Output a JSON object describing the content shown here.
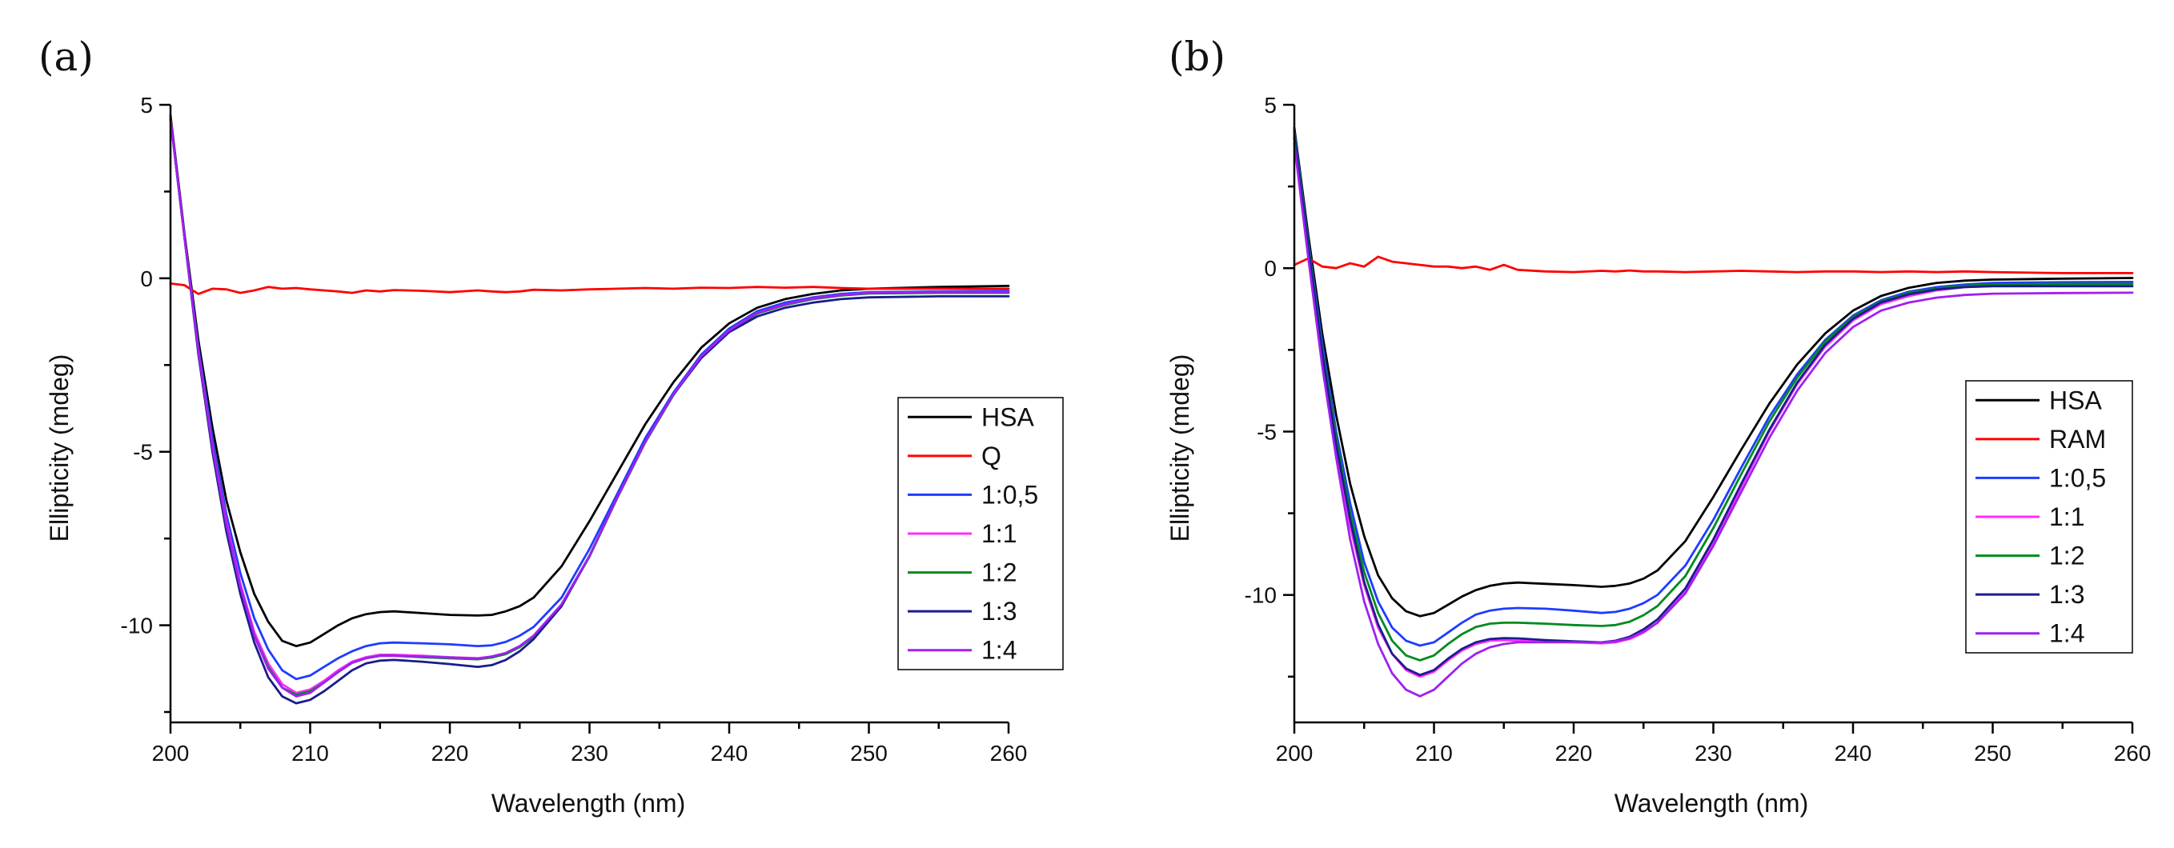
{
  "chart_data": [
    {
      "type": "line",
      "panel_label": "(a)",
      "xlabel": "Wavelength (nm)",
      "ylabel": "Ellipticity (mdeg)",
      "xlim": [
        200,
        260
      ],
      "ylim": [
        -12.8,
        5
      ],
      "xticks": [
        200,
        210,
        220,
        230,
        240,
        250,
        260
      ],
      "yticks": [
        5,
        0,
        -5,
        -10
      ],
      "xtick_labels": [
        "200",
        "210",
        "220",
        "230",
        "240",
        "250",
        "260"
      ],
      "ytick_labels": [
        "5",
        "0",
        "-5",
        "-10"
      ],
      "legend_position": "right",
      "x": [
        200,
        201,
        202,
        203,
        204,
        205,
        206,
        207,
        208,
        209,
        210,
        211,
        212,
        213,
        214,
        215,
        216,
        218,
        220,
        222,
        223,
        224,
        225,
        226,
        228,
        230,
        232,
        234,
        236,
        238,
        240,
        242,
        244,
        246,
        248,
        250,
        255,
        260
      ],
      "series": [
        {
          "name": "HSA",
          "color": "#000000",
          "values": [
            4.7,
            1.3,
            -1.8,
            -4.3,
            -6.4,
            -7.9,
            -9.1,
            -9.9,
            -10.45,
            -10.6,
            -10.5,
            -10.25,
            -10.0,
            -9.8,
            -9.68,
            -9.62,
            -9.6,
            -9.65,
            -9.7,
            -9.72,
            -9.7,
            -9.6,
            -9.45,
            -9.2,
            -8.3,
            -7.0,
            -5.6,
            -4.2,
            -3.0,
            -2.0,
            -1.3,
            -0.85,
            -0.6,
            -0.45,
            -0.35,
            -0.3,
            -0.25,
            -0.22
          ]
        },
        {
          "name": "Q",
          "color": "#ff0000",
          "values": [
            -0.15,
            -0.2,
            -0.45,
            -0.3,
            -0.32,
            -0.42,
            -0.35,
            -0.25,
            -0.3,
            -0.28,
            -0.32,
            -0.35,
            -0.38,
            -0.42,
            -0.35,
            -0.38,
            -0.34,
            -0.36,
            -0.4,
            -0.35,
            -0.38,
            -0.4,
            -0.38,
            -0.33,
            -0.35,
            -0.32,
            -0.3,
            -0.28,
            -0.3,
            -0.27,
            -0.28,
            -0.25,
            -0.27,
            -0.25,
            -0.28,
            -0.3,
            -0.3,
            -0.3
          ]
        },
        {
          "name": "1:0,5",
          "color": "#1e3cff",
          "values": [
            4.6,
            1.2,
            -2.0,
            -4.6,
            -6.8,
            -8.5,
            -9.8,
            -10.7,
            -11.3,
            -11.55,
            -11.45,
            -11.2,
            -10.95,
            -10.75,
            -10.6,
            -10.52,
            -10.5,
            -10.52,
            -10.55,
            -10.6,
            -10.58,
            -10.48,
            -10.3,
            -10.05,
            -9.2,
            -7.8,
            -6.2,
            -4.6,
            -3.3,
            -2.2,
            -1.45,
            -0.95,
            -0.7,
            -0.55,
            -0.45,
            -0.4,
            -0.38,
            -0.36
          ]
        },
        {
          "name": "1:1",
          "color": "#ff2cff",
          "values": [
            4.6,
            1.2,
            -2.1,
            -4.8,
            -7.0,
            -8.8,
            -10.2,
            -11.1,
            -11.7,
            -11.95,
            -11.85,
            -11.6,
            -11.3,
            -11.05,
            -10.92,
            -10.85,
            -10.85,
            -10.88,
            -10.92,
            -10.95,
            -10.9,
            -10.8,
            -10.6,
            -10.3,
            -9.4,
            -8.0,
            -6.3,
            -4.7,
            -3.35,
            -2.25,
            -1.5,
            -1.0,
            -0.75,
            -0.58,
            -0.48,
            -0.42,
            -0.4,
            -0.4
          ]
        },
        {
          "name": "1:2",
          "color": "#008a1e",
          "values": [
            4.6,
            1.2,
            -2.1,
            -4.8,
            -7.1,
            -8.9,
            -10.3,
            -11.2,
            -11.8,
            -12.0,
            -11.9,
            -11.65,
            -11.35,
            -11.08,
            -10.95,
            -10.88,
            -10.88,
            -10.92,
            -10.95,
            -10.98,
            -10.93,
            -10.83,
            -10.63,
            -10.33,
            -9.42,
            -8.02,
            -6.32,
            -4.72,
            -3.37,
            -2.27,
            -1.52,
            -1.02,
            -0.77,
            -0.6,
            -0.5,
            -0.44,
            -0.42,
            -0.42
          ]
        },
        {
          "name": "1:3",
          "color": "#1b1c8c",
          "values": [
            4.6,
            1.2,
            -2.2,
            -5.0,
            -7.3,
            -9.1,
            -10.5,
            -11.5,
            -12.05,
            -12.25,
            -12.15,
            -11.9,
            -11.6,
            -11.3,
            -11.1,
            -11.02,
            -11.0,
            -11.05,
            -11.12,
            -11.2,
            -11.15,
            -11.0,
            -10.75,
            -10.4,
            -9.45,
            -8.0,
            -6.3,
            -4.7,
            -3.35,
            -2.3,
            -1.55,
            -1.1,
            -0.85,
            -0.7,
            -0.6,
            -0.55,
            -0.52,
            -0.52
          ]
        },
        {
          "name": "1:4",
          "color": "#a020f0",
          "values": [
            4.6,
            1.2,
            -2.1,
            -4.85,
            -7.1,
            -8.9,
            -10.3,
            -11.25,
            -11.8,
            -12.05,
            -11.95,
            -11.65,
            -11.35,
            -11.08,
            -10.95,
            -10.88,
            -10.88,
            -10.9,
            -10.93,
            -10.96,
            -10.9,
            -10.8,
            -10.6,
            -10.3,
            -9.4,
            -8.0,
            -6.3,
            -4.7,
            -3.35,
            -2.25,
            -1.5,
            -1.0,
            -0.75,
            -0.58,
            -0.48,
            -0.42,
            -0.4,
            -0.4
          ]
        }
      ]
    },
    {
      "type": "line",
      "panel_label": "(b)",
      "xlabel": "Wavelength (nm)",
      "ylabel": "Ellipticity (mdeg)",
      "xlim": [
        200,
        260
      ],
      "ylim": [
        -13.9,
        5
      ],
      "xticks": [
        200,
        210,
        220,
        230,
        240,
        250,
        260
      ],
      "yticks": [
        5,
        0,
        -5,
        -10
      ],
      "xtick_labels": [
        "200",
        "210",
        "220",
        "230",
        "240",
        "250",
        "260"
      ],
      "ytick_labels": [
        "5",
        "0",
        "-5",
        "-10"
      ],
      "legend_position": "right",
      "x": [
        200,
        201,
        202,
        203,
        204,
        205,
        206,
        207,
        208,
        209,
        210,
        211,
        212,
        213,
        214,
        215,
        216,
        218,
        220,
        222,
        223,
        224,
        225,
        226,
        228,
        230,
        232,
        234,
        236,
        238,
        240,
        242,
        244,
        246,
        248,
        250,
        255,
        260
      ],
      "series": [
        {
          "name": "HSA",
          "color": "#000000",
          "values": [
            4.3,
            1.0,
            -2.0,
            -4.5,
            -6.6,
            -8.2,
            -9.4,
            -10.1,
            -10.5,
            -10.65,
            -10.55,
            -10.3,
            -10.05,
            -9.85,
            -9.72,
            -9.65,
            -9.62,
            -9.66,
            -9.7,
            -9.75,
            -9.72,
            -9.65,
            -9.5,
            -9.25,
            -8.35,
            -7.0,
            -5.55,
            -4.15,
            -2.95,
            -2.0,
            -1.3,
            -0.85,
            -0.6,
            -0.45,
            -0.38,
            -0.35,
            -0.32,
            -0.3
          ]
        },
        {
          "name": "RAM",
          "color": "#ff0000",
          "values": [
            0.1,
            0.3,
            0.05,
            0.0,
            0.15,
            0.05,
            0.35,
            0.2,
            0.15,
            0.1,
            0.05,
            0.05,
            0.0,
            0.05,
            -0.05,
            0.1,
            -0.05,
            -0.1,
            -0.12,
            -0.08,
            -0.1,
            -0.07,
            -0.1,
            -0.1,
            -0.12,
            -0.1,
            -0.08,
            -0.1,
            -0.12,
            -0.1,
            -0.1,
            -0.12,
            -0.1,
            -0.12,
            -0.1,
            -0.12,
            -0.15,
            -0.15
          ]
        },
        {
          "name": "1:0,5",
          "color": "#1e3cff",
          "values": [
            4.2,
            0.8,
            -2.3,
            -5.0,
            -7.2,
            -9.0,
            -10.2,
            -11.0,
            -11.4,
            -11.55,
            -11.45,
            -11.15,
            -10.85,
            -10.6,
            -10.48,
            -10.42,
            -10.4,
            -10.42,
            -10.48,
            -10.55,
            -10.52,
            -10.42,
            -10.25,
            -10.0,
            -9.1,
            -7.7,
            -6.1,
            -4.55,
            -3.25,
            -2.2,
            -1.45,
            -0.98,
            -0.72,
            -0.58,
            -0.5,
            -0.45,
            -0.43,
            -0.42
          ]
        },
        {
          "name": "1:1",
          "color": "#ff2cff",
          "values": [
            4.0,
            0.6,
            -2.7,
            -5.5,
            -7.9,
            -9.7,
            -11.0,
            -11.8,
            -12.3,
            -12.5,
            -12.35,
            -12.0,
            -11.7,
            -11.5,
            -11.4,
            -11.38,
            -11.4,
            -11.42,
            -11.45,
            -11.48,
            -11.45,
            -11.35,
            -11.15,
            -10.85,
            -9.9,
            -8.4,
            -6.7,
            -5.0,
            -3.55,
            -2.4,
            -1.6,
            -1.1,
            -0.85,
            -0.68,
            -0.58,
            -0.55,
            -0.55,
            -0.55
          ]
        },
        {
          "name": "1:2",
          "color": "#008a1e",
          "values": [
            4.1,
            0.7,
            -2.5,
            -5.2,
            -7.5,
            -9.3,
            -10.55,
            -11.4,
            -11.85,
            -12.0,
            -11.85,
            -11.5,
            -11.2,
            -10.98,
            -10.88,
            -10.85,
            -10.85,
            -10.88,
            -10.92,
            -10.95,
            -10.92,
            -10.82,
            -10.62,
            -10.34,
            -9.42,
            -7.95,
            -6.3,
            -4.7,
            -3.35,
            -2.25,
            -1.5,
            -1.02,
            -0.76,
            -0.62,
            -0.54,
            -0.5,
            -0.48,
            -0.48
          ]
        },
        {
          "name": "1:3",
          "color": "#1b1c8c",
          "values": [
            4.0,
            0.6,
            -2.6,
            -5.4,
            -7.7,
            -9.6,
            -10.9,
            -11.8,
            -12.25,
            -12.45,
            -12.3,
            -11.95,
            -11.65,
            -11.45,
            -11.35,
            -11.32,
            -11.33,
            -11.38,
            -11.42,
            -11.45,
            -11.4,
            -11.28,
            -11.05,
            -10.75,
            -9.8,
            -8.3,
            -6.6,
            -4.95,
            -3.5,
            -2.35,
            -1.55,
            -1.05,
            -0.8,
            -0.65,
            -0.58,
            -0.55,
            -0.55,
            -0.55
          ]
        },
        {
          "name": "1:4",
          "color": "#a020f0",
          "values": [
            3.8,
            0.3,
            -3.0,
            -5.8,
            -8.3,
            -10.2,
            -11.5,
            -12.4,
            -12.9,
            -13.1,
            -12.9,
            -12.5,
            -12.1,
            -11.8,
            -11.6,
            -11.5,
            -11.45,
            -11.45,
            -11.45,
            -11.45,
            -11.42,
            -11.32,
            -11.12,
            -10.85,
            -9.95,
            -8.5,
            -6.85,
            -5.2,
            -3.75,
            -2.6,
            -1.8,
            -1.3,
            -1.05,
            -0.9,
            -0.82,
            -0.78,
            -0.76,
            -0.75
          ]
        }
      ]
    }
  ]
}
